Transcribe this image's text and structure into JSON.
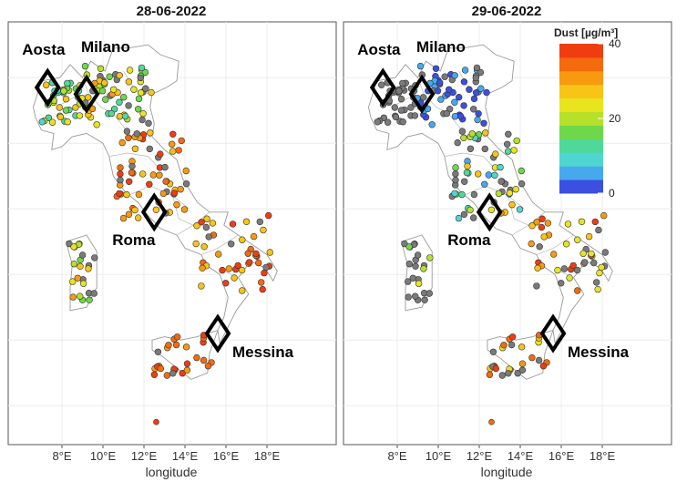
{
  "panels": [
    {
      "title": "28-06-2022",
      "xlabel": "longitude",
      "show_legend": false
    },
    {
      "title": "29-06-2022",
      "xlabel": "longitude",
      "show_legend": true
    }
  ],
  "x_ticks": [
    "8°E",
    "10°E",
    "12°E",
    "14°E",
    "16°E",
    "18°E"
  ],
  "x_tick_values": [
    8,
    10,
    12,
    14,
    16,
    18
  ],
  "legend": {
    "title": "Dust [µg/m³]",
    "ticks": [
      "40",
      "20",
      "0"
    ],
    "min": 0,
    "max": 40,
    "colors": [
      "#3b4fe0",
      "#48a8ee",
      "#4fd6d0",
      "#4fd89a",
      "#6fd84a",
      "#b6e02a",
      "#e8e41e",
      "#f8c416",
      "#f89a10",
      "#f46a0c",
      "#f03d10"
    ]
  },
  "cities": [
    {
      "name": "Aosta",
      "lon": 7.3,
      "lat": 45.7
    },
    {
      "name": "Milano",
      "lon": 9.2,
      "lat": 45.5
    },
    {
      "name": "Roma",
      "lon": 12.5,
      "lat": 41.9
    },
    {
      "name": "Messina",
      "lon": 15.6,
      "lat": 38.2
    }
  ],
  "missing_color": "#7a7a7a",
  "stations_day1_summary": {
    "north_west": 18,
    "po_valley": 8,
    "center": 35,
    "south": 38,
    "islands": 35
  },
  "stations_day2_summary": {
    "north_west": "no data",
    "po_valley": 2,
    "center": 22,
    "south": 36,
    "islands": 30
  }
}
